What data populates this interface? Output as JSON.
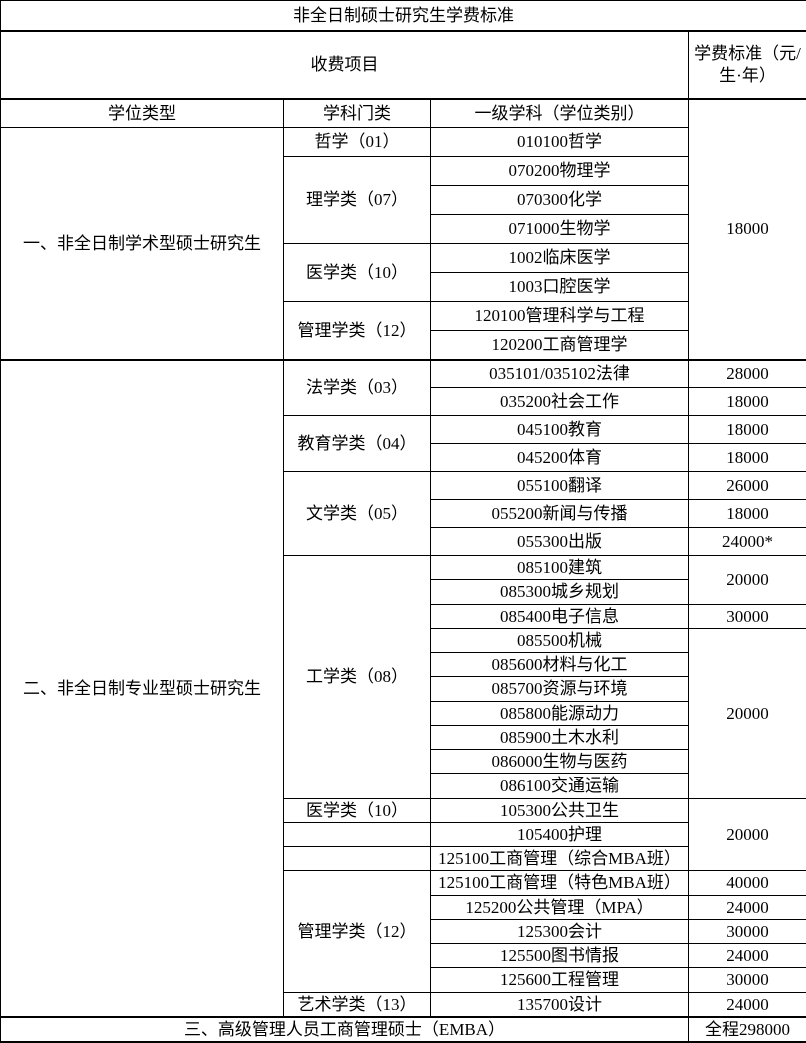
{
  "title": "非全日制硕士研究生学费标准",
  "accent_colors": {
    "border": "#000000",
    "text": "#000000",
    "background": "#ffffff"
  },
  "table": {
    "column_headers": {
      "charge_items": "收费项目",
      "fee_standard": "学费标准（元/生·年）",
      "degree_type": "学位类型",
      "discipline_category": "学科门类",
      "first_level_subject": "一级学科（学位类别）"
    },
    "rows": [
      {
        "cells": [
          {
            "t": "非全日制硕士研究生学费标准",
            "cs": 4,
            "k": "title"
          }
        ]
      },
      {
        "cells": [
          {
            "t": "收费项目",
            "cs": 3,
            "k": "hproj"
          },
          {
            "t": "学费标准（元/生·年）",
            "k": "hfee"
          }
        ]
      },
      {
        "cells": [
          {
            "t": "学位类型",
            "k": "sub"
          },
          {
            "t": "学科门类",
            "k": "sub"
          },
          {
            "t": "一级学科（学位类别）",
            "k": "sub"
          },
          {
            "t": "18000",
            "rs": 9,
            "k": "fee"
          }
        ]
      },
      {
        "cells": [
          {
            "t": "一、非全日制学术型硕士研究生",
            "rs": 8,
            "k": "deg"
          },
          {
            "t": "哲学（01）",
            "k": "cat"
          },
          {
            "t": "010100哲学",
            "k": "subj"
          }
        ]
      },
      {
        "cells": [
          {
            "t": "理学类（07）",
            "rs": 3,
            "k": "cat"
          },
          {
            "t": "070200物理学",
            "k": "subj"
          }
        ]
      },
      {
        "cells": [
          {
            "t": "070300化学",
            "k": "subj"
          }
        ]
      },
      {
        "cells": [
          {
            "t": "071000生物学",
            "k": "subj"
          }
        ]
      },
      {
        "cells": [
          {
            "t": "医学类（10）",
            "rs": 2,
            "k": "cat"
          },
          {
            "t": "1002临床医学",
            "k": "subj"
          }
        ]
      },
      {
        "cells": [
          {
            "t": "1003口腔医学",
            "k": "subj"
          }
        ]
      },
      {
        "cells": [
          {
            "t": "管理学类（12）",
            "rs": 2,
            "k": "cat"
          },
          {
            "t": "120100管理科学与工程",
            "k": "subj"
          }
        ]
      },
      {
        "cells": [
          {
            "t": "120200工商管理学",
            "k": "subj"
          }
        ]
      },
      {
        "cells": [
          {
            "t": "二、非全日制专业型硕士研究生",
            "rs": 26,
            "k": "deg"
          },
          {
            "t": "法学类（03）",
            "rs": 2,
            "k": "cat"
          },
          {
            "t": "035101/035102法律",
            "k": "subj"
          },
          {
            "t": "28000",
            "k": "fee"
          }
        ]
      },
      {
        "cells": [
          {
            "t": "035200社会工作",
            "k": "subj"
          },
          {
            "t": "18000",
            "k": "fee"
          }
        ]
      },
      {
        "cells": [
          {
            "t": "教育学类（04）",
            "rs": 2,
            "k": "cat"
          },
          {
            "t": "045100教育",
            "k": "subj"
          },
          {
            "t": "18000",
            "k": "fee"
          }
        ]
      },
      {
        "cells": [
          {
            "t": "045200体育",
            "k": "subj"
          },
          {
            "t": "18000",
            "k": "fee"
          }
        ]
      },
      {
        "cells": [
          {
            "t": "文学类（05）",
            "rs": 3,
            "k": "cat"
          },
          {
            "t": "055100翻译",
            "k": "subj"
          },
          {
            "t": "26000",
            "k": "fee"
          }
        ]
      },
      {
        "cells": [
          {
            "t": "055200新闻与传播",
            "k": "subj"
          },
          {
            "t": "18000",
            "k": "fee"
          }
        ]
      },
      {
        "cells": [
          {
            "t": "055300出版",
            "k": "subj"
          },
          {
            "t": "24000*",
            "k": "fee"
          }
        ]
      },
      {
        "cells": [
          {
            "t": "工学类（08）",
            "rs": 10,
            "k": "cat"
          },
          {
            "t": "085100建筑",
            "k": "subj"
          },
          {
            "t": "20000",
            "rs": 2,
            "k": "fee"
          }
        ]
      },
      {
        "cells": [
          {
            "t": "085300城乡规划",
            "k": "subj"
          }
        ]
      },
      {
        "cells": [
          {
            "t": "085400电子信息",
            "k": "subj"
          },
          {
            "t": "30000",
            "k": "fee"
          }
        ]
      },
      {
        "cells": [
          {
            "t": "085500机械",
            "k": "subj"
          },
          {
            "t": "20000",
            "rs": 7,
            "k": "fee"
          }
        ]
      },
      {
        "cells": [
          {
            "t": "085600材料与化工",
            "k": "subj"
          }
        ]
      },
      {
        "cells": [
          {
            "t": "085700资源与环境",
            "k": "subj"
          }
        ]
      },
      {
        "cells": [
          {
            "t": "085800能源动力",
            "k": "subj"
          }
        ]
      },
      {
        "cells": [
          {
            "t": "085900土木水利",
            "k": "subj"
          }
        ]
      },
      {
        "cells": [
          {
            "t": "086000生物与医药",
            "k": "subj"
          }
        ]
      },
      {
        "cells": [
          {
            "t": "086100交通运输",
            "k": "subj"
          }
        ]
      },
      {
        "cells": [
          {
            "t": "医学类（10）",
            "k": "cat"
          },
          {
            "t": "105300公共卫生",
            "k": "subj"
          },
          {
            "t": "20000",
            "rs": 3,
            "k": "fee"
          }
        ]
      },
      {
        "cells": [
          {
            "t": "",
            "k": "cat"
          },
          {
            "t": "105400护理",
            "k": "subj"
          }
        ]
      },
      {
        "cells": [
          {
            "t": "",
            "k": "cat"
          },
          {
            "t": "125100工商管理（综合MBA班）",
            "k": "subj"
          }
        ]
      },
      {
        "cells": [
          {
            "t": "管理学类（12）",
            "rs": 5,
            "k": "cat"
          },
          {
            "t": "125100工商管理（特色MBA班）",
            "k": "subj"
          },
          {
            "t": "40000",
            "k": "fee"
          }
        ]
      },
      {
        "cells": [
          {
            "t": "125200公共管理（MPA）",
            "k": "subj"
          },
          {
            "t": "24000",
            "k": "fee"
          }
        ]
      },
      {
        "cells": [
          {
            "t": "125300会计",
            "k": "subj"
          },
          {
            "t": "30000",
            "k": "fee"
          }
        ]
      },
      {
        "cells": [
          {
            "t": "125500图书情报",
            "k": "subj"
          },
          {
            "t": "24000",
            "k": "fee"
          }
        ]
      },
      {
        "cells": [
          {
            "t": "125600工程管理",
            "k": "subj"
          },
          {
            "t": "30000",
            "k": "fee"
          }
        ]
      },
      {
        "cells": [
          {
            "t": "艺术学类（13）",
            "k": "cat"
          },
          {
            "t": "135700设计",
            "k": "subj"
          },
          {
            "t": "24000",
            "k": "fee"
          }
        ]
      },
      {
        "cells": [
          {
            "t": "三、高级管理人员工商管理硕士（EMBA）",
            "cs": 3,
            "k": "deg"
          },
          {
            "t": "全程298000",
            "k": "fee"
          }
        ]
      }
    ]
  }
}
